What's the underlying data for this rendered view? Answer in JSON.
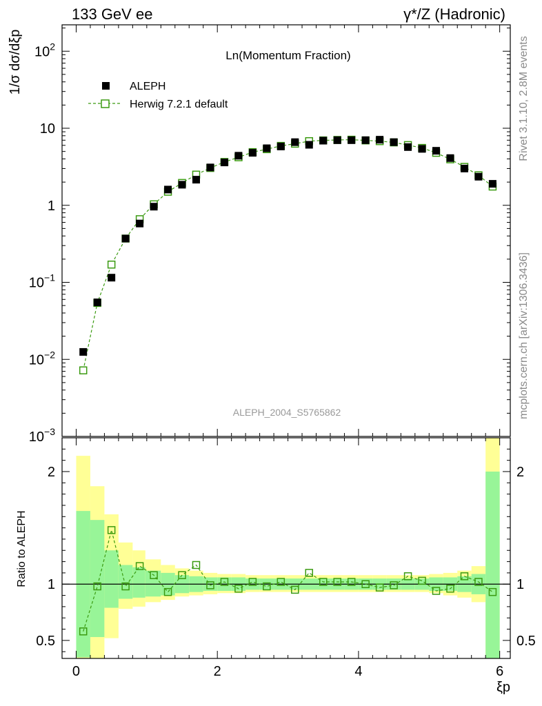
{
  "header": {
    "left": "133 GeV ee",
    "right": "γ*/Z (Hadronic)"
  },
  "side_labels": {
    "rivet": "Rivet 3.1.10,  2.8M events",
    "mcplots": "mcplots.cern.ch [arXiv:1306.3436]"
  },
  "chart_data": [
    {
      "panel": "main",
      "type": "scatter",
      "title": "Ln(Momentum Fraction)",
      "ylabel": "1/σ dσ/dξp",
      "xlabel": "",
      "xlim": [
        -0.2,
        6.15
      ],
      "ylim": [
        0.001,
        220
      ],
      "yscale": "log",
      "grid": false,
      "legend_position": "top-left",
      "watermark": "ALEPH_2004_S5765862",
      "x_ticks": [
        0,
        2,
        4,
        6
      ],
      "y_ticks": [
        {
          "value": 0.001,
          "label": "10",
          "exp": "−3"
        },
        {
          "value": 0.01,
          "label": "10",
          "exp": "−2"
        },
        {
          "value": 0.1,
          "label": "10",
          "exp": "−1"
        },
        {
          "value": 1,
          "label": "1",
          "exp": ""
        },
        {
          "value": 10,
          "label": "10",
          "exp": ""
        },
        {
          "value": 100,
          "label": "10",
          "exp": "2"
        }
      ],
      "x": [
        0.1,
        0.3,
        0.5,
        0.7,
        0.9,
        1.1,
        1.3,
        1.5,
        1.7,
        1.9,
        2.1,
        2.3,
        2.5,
        2.7,
        2.9,
        3.1,
        3.3,
        3.5,
        3.7,
        3.9,
        4.1,
        4.3,
        4.5,
        4.7,
        4.9,
        5.1,
        5.3,
        5.5,
        5.7,
        5.9
      ],
      "series": [
        {
          "name": "ALEPH",
          "marker": "filled-square",
          "color": "#000000",
          "values": [
            0.0125,
            0.055,
            0.115,
            0.37,
            0.58,
            0.96,
            1.6,
            1.85,
            2.15,
            3.1,
            3.6,
            4.4,
            4.8,
            5.5,
            5.8,
            6.6,
            6.1,
            6.9,
            7.0,
            7.0,
            7.0,
            7.1,
            6.6,
            5.7,
            5.4,
            5.1,
            4.1,
            3.0,
            2.35,
            1.9
          ]
        },
        {
          "name": "Herwig 7.2.1 default",
          "marker": "open-square-dashed-line",
          "color": "#3a9a10",
          "values": [
            0.0072,
            0.054,
            0.17,
            0.37,
            0.66,
            1.03,
            1.5,
            1.95,
            2.5,
            3.05,
            3.65,
            4.2,
            4.9,
            5.35,
            5.9,
            6.3,
            6.8,
            6.95,
            7.05,
            7.1,
            6.95,
            6.8,
            6.55,
            6.05,
            5.55,
            4.8,
            3.95,
            3.15,
            2.45,
            1.75
          ]
        }
      ]
    },
    {
      "panel": "ratio",
      "type": "line",
      "ylabel": "Ratio to ALEPH",
      "xlabel": "ξp",
      "xlim": [
        -0.2,
        6.15
      ],
      "ylim": [
        0.34,
        2.3
      ],
      "reference_line": 1,
      "x_ticks": [
        0,
        2,
        4,
        6
      ],
      "y_ticks": [
        0.5,
        1,
        2
      ],
      "bins": [
        {
          "lo": 0.0,
          "hi": 0.2,
          "band_inner": [
            0.35,
            1.65
          ],
          "band_outer": [
            0.34,
            2.14
          ]
        },
        {
          "lo": 0.2,
          "hi": 0.4,
          "band_inner": [
            0.53,
            1.57
          ],
          "band_outer": [
            0.34,
            1.87
          ]
        },
        {
          "lo": 0.4,
          "hi": 0.6,
          "band_inner": [
            0.79,
            1.3
          ],
          "band_outer": [
            0.52,
            1.62
          ]
        },
        {
          "lo": 0.6,
          "hi": 0.8,
          "band_inner": [
            0.87,
            1.17
          ],
          "band_outer": [
            0.78,
            1.37
          ]
        },
        {
          "lo": 0.8,
          "hi": 0.98,
          "band_inner": [
            0.88,
            1.15
          ],
          "band_outer": [
            0.8,
            1.3
          ]
        },
        {
          "lo": 0.98,
          "hi": 1.2,
          "band_inner": [
            0.89,
            1.12
          ],
          "band_outer": [
            0.84,
            1.22
          ]
        },
        {
          "lo": 1.2,
          "hi": 1.4,
          "band_inner": [
            0.9,
            1.1
          ],
          "band_outer": [
            0.86,
            1.17
          ]
        },
        {
          "lo": 1.4,
          "hi": 1.6,
          "band_inner": [
            0.92,
            1.08
          ],
          "band_outer": [
            0.89,
            1.14
          ]
        },
        {
          "lo": 1.6,
          "hi": 1.8,
          "band_inner": [
            0.93,
            1.07
          ],
          "band_outer": [
            0.9,
            1.12
          ]
        },
        {
          "lo": 1.8,
          "hi": 2.0,
          "band_inner": [
            0.94,
            1.06
          ],
          "band_outer": [
            0.91,
            1.1
          ]
        },
        {
          "lo": 2.0,
          "hi": 2.2,
          "band_inner": [
            0.94,
            1.06
          ],
          "band_outer": [
            0.92,
            1.09
          ]
        },
        {
          "lo": 2.2,
          "hi": 2.4,
          "band_inner": [
            0.94,
            1.06
          ],
          "band_outer": [
            0.92,
            1.09
          ]
        },
        {
          "lo": 2.4,
          "hi": 2.6,
          "band_inner": [
            0.95,
            1.05
          ],
          "band_outer": [
            0.93,
            1.08
          ]
        },
        {
          "lo": 2.6,
          "hi": 2.8,
          "band_inner": [
            0.95,
            1.05
          ],
          "band_outer": [
            0.93,
            1.08
          ]
        },
        {
          "lo": 2.8,
          "hi": 3.0,
          "band_inner": [
            0.95,
            1.05
          ],
          "band_outer": [
            0.93,
            1.08
          ]
        },
        {
          "lo": 3.0,
          "hi": 3.2,
          "band_inner": [
            0.95,
            1.05
          ],
          "band_outer": [
            0.93,
            1.08
          ]
        },
        {
          "lo": 3.2,
          "hi": 3.4,
          "band_inner": [
            0.95,
            1.05
          ],
          "band_outer": [
            0.93,
            1.08
          ]
        },
        {
          "lo": 3.4,
          "hi": 3.6,
          "band_inner": [
            0.95,
            1.05
          ],
          "band_outer": [
            0.93,
            1.08
          ]
        },
        {
          "lo": 3.6,
          "hi": 3.8,
          "band_inner": [
            0.95,
            1.05
          ],
          "band_outer": [
            0.93,
            1.08
          ]
        },
        {
          "lo": 3.8,
          "hi": 4.0,
          "band_inner": [
            0.95,
            1.05
          ],
          "band_outer": [
            0.93,
            1.08
          ]
        },
        {
          "lo": 4.0,
          "hi": 4.2,
          "band_inner": [
            0.95,
            1.05
          ],
          "band_outer": [
            0.93,
            1.08
          ]
        },
        {
          "lo": 4.2,
          "hi": 4.4,
          "band_inner": [
            0.95,
            1.05
          ],
          "band_outer": [
            0.93,
            1.08
          ]
        },
        {
          "lo": 4.4,
          "hi": 4.6,
          "band_inner": [
            0.95,
            1.05
          ],
          "band_outer": [
            0.93,
            1.08
          ]
        },
        {
          "lo": 4.6,
          "hi": 4.8,
          "band_inner": [
            0.95,
            1.05
          ],
          "band_outer": [
            0.93,
            1.08
          ]
        },
        {
          "lo": 4.8,
          "hi": 5.0,
          "band_inner": [
            0.95,
            1.05
          ],
          "band_outer": [
            0.93,
            1.08
          ]
        },
        {
          "lo": 5.0,
          "hi": 5.2,
          "band_inner": [
            0.94,
            1.06
          ],
          "band_outer": [
            0.92,
            1.09
          ]
        },
        {
          "lo": 5.2,
          "hi": 5.4,
          "band_inner": [
            0.94,
            1.06
          ],
          "band_outer": [
            0.9,
            1.1
          ]
        },
        {
          "lo": 5.4,
          "hi": 5.6,
          "band_inner": [
            0.93,
            1.07
          ],
          "band_outer": [
            0.88,
            1.12
          ]
        },
        {
          "lo": 5.6,
          "hi": 5.8,
          "band_inner": [
            0.91,
            1.09
          ],
          "band_outer": [
            0.84,
            1.16
          ]
        },
        {
          "lo": 5.8,
          "hi": 6.0,
          "band_inner": [
            0.34,
            2.0
          ],
          "band_outer": [
            0.34,
            2.3
          ]
        }
      ],
      "series": [
        {
          "name": "Herwig 7.2.1 default",
          "color": "#3a9a10",
          "values": [
            0.58,
            0.98,
            1.48,
            0.98,
            1.16,
            1.08,
            0.93,
            1.08,
            1.17,
            0.99,
            1.02,
            0.96,
            1.02,
            0.98,
            1.02,
            0.95,
            1.1,
            1.02,
            1.02,
            1.02,
            1.0,
            0.97,
            0.99,
            1.07,
            1.03,
            0.94,
            0.96,
            1.07,
            1.02,
            0.93
          ]
        }
      ],
      "band_colors": {
        "inner": "#98f598",
        "outer": "#ffff96"
      }
    }
  ]
}
